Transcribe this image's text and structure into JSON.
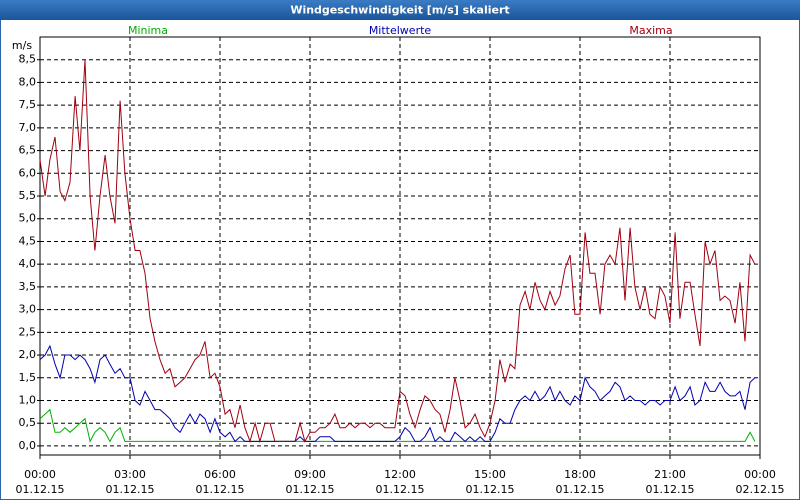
{
  "chart_data": {
    "type": "line",
    "title": "Windgeschwindigkeit [m/s] skaliert",
    "y_unit": "m/s",
    "xlim": [
      0,
      24
    ],
    "ylim": [
      -0.2,
      9.0
    ],
    "grid": true,
    "xticks": [
      {
        "value": 0,
        "label": "00:00",
        "date": "01.12.15"
      },
      {
        "value": 3,
        "label": "03:00",
        "date": "01.12.15"
      },
      {
        "value": 6,
        "label": "06:00",
        "date": "01.12.15"
      },
      {
        "value": 9,
        "label": "09:00",
        "date": "01.12.15"
      },
      {
        "value": 12,
        "label": "12:00",
        "date": "01.12.15"
      },
      {
        "value": 15,
        "label": "15:00",
        "date": "01.12.15"
      },
      {
        "value": 18,
        "label": "18:00",
        "date": "01.12.15"
      },
      {
        "value": 21,
        "label": "21:00",
        "date": "01.12.15"
      },
      {
        "value": 24,
        "label": "00:00",
        "date": "02.12.15"
      }
    ],
    "yticks": [
      {
        "value": 0,
        "label": "0,0"
      },
      {
        "value": 0.5,
        "label": "0,5"
      },
      {
        "value": 1,
        "label": "1,0"
      },
      {
        "value": 1.5,
        "label": "1,5"
      },
      {
        "value": 2,
        "label": "2,0"
      },
      {
        "value": 2.5,
        "label": "2,5"
      },
      {
        "value": 3,
        "label": "3,0"
      },
      {
        "value": 3.5,
        "label": "3,5"
      },
      {
        "value": 4,
        "label": "4,0"
      },
      {
        "value": 4.5,
        "label": "4,5"
      },
      {
        "value": 5,
        "label": "5,0"
      },
      {
        "value": 5.5,
        "label": "5,5"
      },
      {
        "value": 6,
        "label": "6,0"
      },
      {
        "value": 6.5,
        "label": "6,5"
      },
      {
        "value": 7,
        "label": "7,0"
      },
      {
        "value": 7.5,
        "label": "7,5"
      },
      {
        "value": 8,
        "label": "8,0"
      },
      {
        "value": 8.5,
        "label": "8,5"
      }
    ],
    "x": [
      0,
      0.17,
      0.33,
      0.5,
      0.67,
      0.83,
      1,
      1.17,
      1.33,
      1.5,
      1.67,
      1.83,
      2,
      2.17,
      2.33,
      2.5,
      2.67,
      2.83,
      3,
      3.17,
      3.33,
      3.5,
      3.67,
      3.83,
      4,
      4.17,
      4.33,
      4.5,
      4.67,
      4.83,
      5,
      5.17,
      5.33,
      5.5,
      5.67,
      5.83,
      6,
      6.17,
      6.33,
      6.5,
      6.67,
      6.83,
      7,
      7.17,
      7.33,
      7.5,
      7.67,
      7.83,
      8,
      8.17,
      8.33,
      8.5,
      8.67,
      8.83,
      9,
      9.17,
      9.33,
      9.5,
      9.67,
      9.83,
      10,
      10.17,
      10.33,
      10.5,
      10.67,
      10.83,
      11,
      11.17,
      11.33,
      11.5,
      11.67,
      11.83,
      12,
      12.17,
      12.33,
      12.5,
      12.67,
      12.83,
      13,
      13.17,
      13.33,
      13.5,
      13.67,
      13.83,
      14,
      14.17,
      14.33,
      14.5,
      14.67,
      14.83,
      15,
      15.17,
      15.33,
      15.5,
      15.67,
      15.83,
      16,
      16.17,
      16.33,
      16.5,
      16.67,
      16.83,
      17,
      17.17,
      17.33,
      17.5,
      17.67,
      17.83,
      18,
      18.17,
      18.33,
      18.5,
      18.67,
      18.83,
      19,
      19.17,
      19.33,
      19.5,
      19.67,
      19.83,
      20,
      20.17,
      20.33,
      20.5,
      20.67,
      20.83,
      21,
      21.17,
      21.33,
      21.5,
      21.67,
      21.83,
      22,
      22.17,
      22.33,
      22.5,
      22.67,
      22.83,
      23,
      23.17,
      23.33,
      23.5,
      23.67,
      23.83
    ],
    "series": [
      {
        "name": "Minima",
        "color": "#00b000",
        "values": [
          0.6,
          0.7,
          0.8,
          0.3,
          0.3,
          0.4,
          0.3,
          0.4,
          0.5,
          0.6,
          0.1,
          0.3,
          0.4,
          0.3,
          0.1,
          0.3,
          0.4,
          0.1,
          0.1,
          0.1,
          0.1,
          0.1,
          0.1,
          0.1,
          0.1,
          0.1,
          0.1,
          0.1,
          0.1,
          0.1,
          0.1,
          0.1,
          0.1,
          0.1,
          0.1,
          0.1,
          0.1,
          0.1,
          0.1,
          0.1,
          0.1,
          0.1,
          0.1,
          0.1,
          0.1,
          0.1,
          0.1,
          0.1,
          0.1,
          0.1,
          0.1,
          0.1,
          0.1,
          0.1,
          0.1,
          0.1,
          0.1,
          0.1,
          0.1,
          0.1,
          0.1,
          0.1,
          0.1,
          0.1,
          0.1,
          0.1,
          0.1,
          0.1,
          0.1,
          0.1,
          0.1,
          0.1,
          0.1,
          0.1,
          0.1,
          0.1,
          0.1,
          0.1,
          0.1,
          0.1,
          0.1,
          0.1,
          0.1,
          0.1,
          0.1,
          0.1,
          0.1,
          0.1,
          0.1,
          0.1,
          0.1,
          0.1,
          0.1,
          0.1,
          0.1,
          0.1,
          0.1,
          0.1,
          0.1,
          0.1,
          0.1,
          0.1,
          0.1,
          0.1,
          0.1,
          0.1,
          0.1,
          0.1,
          0.1,
          0.1,
          0.1,
          0.1,
          0.1,
          0.1,
          0.1,
          0.1,
          0.1,
          0.1,
          0.1,
          0.1,
          0.1,
          0.1,
          0.1,
          0.1,
          0.1,
          0.1,
          0.1,
          0.1,
          0.1,
          0.1,
          0.1,
          0.1,
          0.1,
          0.1,
          0.1,
          0.1,
          0.1,
          0.1,
          0.1,
          0.1,
          0.1,
          0.1,
          0.3,
          0.1
        ]
      },
      {
        "name": "Mittelwerte",
        "color": "#0000b0",
        "values": [
          1.9,
          2.0,
          2.2,
          1.8,
          1.5,
          2.0,
          2.0,
          1.9,
          2.0,
          1.9,
          1.7,
          1.4,
          1.9,
          2.0,
          1.8,
          1.6,
          1.7,
          1.5,
          1.5,
          1.0,
          0.9,
          1.2,
          1.0,
          0.8,
          0.8,
          0.7,
          0.6,
          0.4,
          0.3,
          0.5,
          0.7,
          0.5,
          0.7,
          0.6,
          0.3,
          0.6,
          0.3,
          0.2,
          0.3,
          0.1,
          0.2,
          0.1,
          0.1,
          0.1,
          0.1,
          0.1,
          0.1,
          0.1,
          0.1,
          0.1,
          0.1,
          0.1,
          0.2,
          0.1,
          0.1,
          0.1,
          0.2,
          0.2,
          0.2,
          0.1,
          0.1,
          0.1,
          0.1,
          0.1,
          0.1,
          0.1,
          0.1,
          0.1,
          0.1,
          0.1,
          0.1,
          0.1,
          0.2,
          0.4,
          0.3,
          0.1,
          0.1,
          0.2,
          0.4,
          0.1,
          0.2,
          0.1,
          0.1,
          0.3,
          0.2,
          0.1,
          0.2,
          0.1,
          0.2,
          0.1,
          0.1,
          0.3,
          0.6,
          0.5,
          0.5,
          0.8,
          1.0,
          1.1,
          1.0,
          1.2,
          1.0,
          1.1,
          1.3,
          1.0,
          1.2,
          1.0,
          0.9,
          1.1,
          1.0,
          1.5,
          1.3,
          1.2,
          1.0,
          1.1,
          1.2,
          1.4,
          1.3,
          1.0,
          1.1,
          1.0,
          1.0,
          0.9,
          1.0,
          1.0,
          0.9,
          1.0,
          1.0,
          1.3,
          1.0,
          1.1,
          1.3,
          0.9,
          1.0,
          1.4,
          1.2,
          1.2,
          1.4,
          1.2,
          1.1,
          1.1,
          1.2,
          0.8,
          1.4,
          1.5
        ]
      },
      {
        "name": "Maxima",
        "color": "#a00010",
        "values": [
          6.3,
          5.5,
          6.3,
          6.8,
          5.6,
          5.4,
          5.8,
          7.7,
          6.5,
          8.5,
          5.5,
          4.3,
          5.5,
          6.4,
          5.5,
          4.9,
          7.6,
          6.0,
          5.0,
          4.3,
          4.3,
          3.8,
          2.8,
          2.3,
          1.9,
          1.6,
          1.7,
          1.3,
          1.4,
          1.5,
          1.7,
          1.9,
          2.0,
          2.3,
          1.5,
          1.6,
          1.3,
          0.7,
          0.8,
          0.4,
          0.9,
          0.4,
          0.1,
          0.5,
          0.1,
          0.5,
          0.5,
          0.1,
          0.1,
          0.1,
          0.1,
          0.1,
          0.5,
          0.1,
          0.3,
          0.3,
          0.4,
          0.4,
          0.5,
          0.7,
          0.4,
          0.4,
          0.5,
          0.4,
          0.5,
          0.5,
          0.4,
          0.5,
          0.5,
          0.4,
          0.4,
          0.4,
          1.2,
          1.1,
          0.7,
          0.4,
          0.8,
          1.1,
          1.0,
          0.8,
          0.7,
          0.3,
          0.8,
          1.5,
          1.0,
          0.4,
          0.5,
          0.7,
          0.4,
          0.2,
          0.5,
          1.0,
          1.9,
          1.4,
          1.8,
          1.7,
          3.1,
          3.4,
          3.0,
          3.6,
          3.2,
          3.0,
          3.4,
          3.1,
          3.3,
          3.9,
          4.2,
          2.9,
          2.9,
          4.7,
          3.8,
          3.8,
          2.9,
          4.0,
          4.2,
          4.0,
          4.8,
          3.2,
          4.8,
          3.5,
          3.0,
          3.5,
          2.9,
          2.8,
          3.5,
          3.3,
          2.7,
          4.7,
          2.8,
          3.6,
          3.6,
          2.9,
          2.2,
          4.5,
          4.0,
          4.3,
          3.2,
          3.3,
          3.2,
          2.7,
          3.6,
          2.3,
          4.2,
          4.0
        ]
      }
    ]
  }
}
